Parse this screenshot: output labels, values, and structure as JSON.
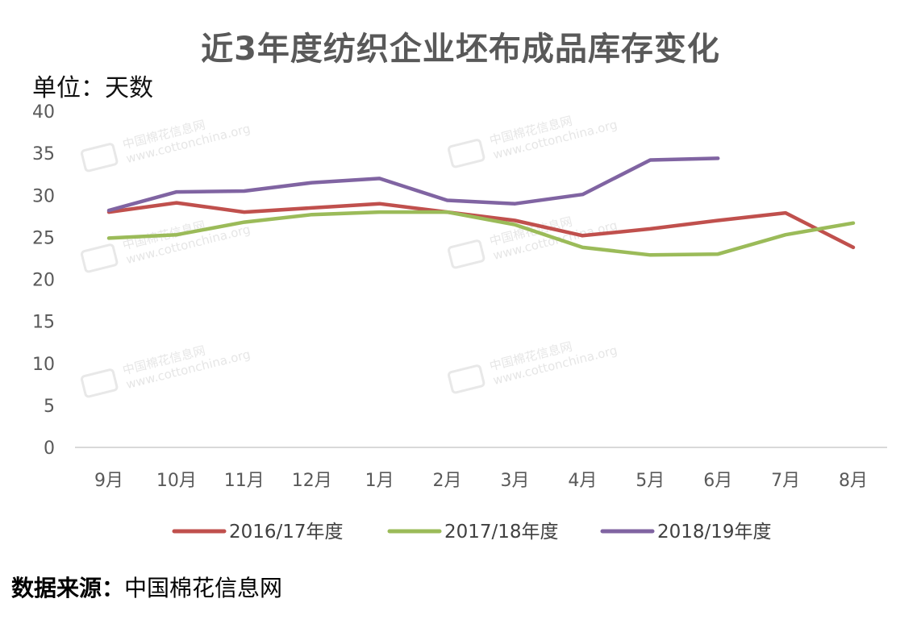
{
  "chart_data": {
    "type": "line",
    "title": "近3年度纺织企业坯布成品库存变化",
    "unit": "单位：天数",
    "categories": [
      "9月",
      "10月",
      "11月",
      "12月",
      "1月",
      "2月",
      "3月",
      "4月",
      "5月",
      "6月",
      "7月",
      "8月"
    ],
    "ylim": [
      0,
      40
    ],
    "yticks": [
      0,
      5,
      10,
      15,
      20,
      25,
      30,
      35,
      40
    ],
    "grid": false,
    "legend_position": "bottom",
    "series": [
      {
        "name": "2016/17年度",
        "color": "#c0504d",
        "values": [
          28.0,
          29.1,
          28.0,
          28.5,
          29.0,
          28.0,
          27.0,
          25.2,
          26.0,
          27.0,
          27.9,
          23.8
        ]
      },
      {
        "name": "2017/18年度",
        "color": "#9bbb59",
        "values": [
          24.9,
          25.3,
          26.8,
          27.7,
          28.0,
          28.0,
          26.5,
          23.8,
          22.9,
          23.0,
          25.3,
          26.7
        ]
      },
      {
        "name": "2018/19年度",
        "color": "#8064a2",
        "values": [
          28.2,
          30.4,
          30.5,
          31.5,
          32.0,
          29.4,
          29.0,
          30.1,
          34.2,
          34.4,
          null,
          null
        ]
      }
    ]
  },
  "watermark": {
    "text": "中国棉花信息网",
    "url": "www.cottonchina.org"
  },
  "source": {
    "label": "数据来源：",
    "text": "中国棉花信息网"
  }
}
